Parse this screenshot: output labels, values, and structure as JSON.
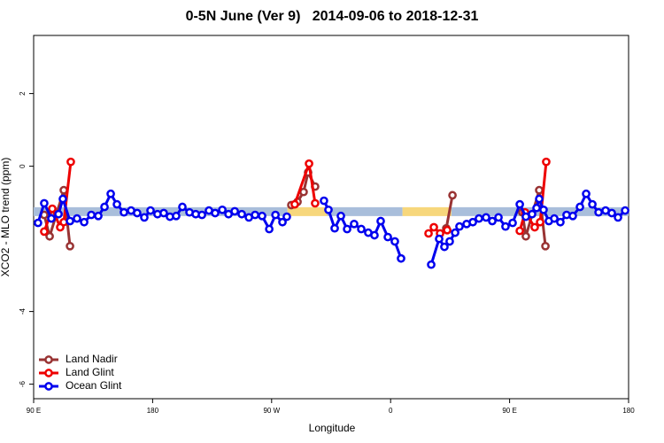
{
  "chart_data": {
    "type": "line",
    "title": "0-5N June (Ver 9)   2014-09-06 to 2018-12-31",
    "x_label": "Longitude",
    "y_label": "XCO2 - MLO trend (ppm)",
    "xlim": [
      90,
      540
    ],
    "ylim": [
      -6.4,
      3.6
    ],
    "xticks": [
      {
        "value": 90,
        "label": "90 E"
      },
      {
        "value": 180,
        "label": "180"
      },
      {
        "value": 270,
        "label": "90 W"
      },
      {
        "value": 360,
        "label": "0"
      },
      {
        "value": 450,
        "label": "90 E"
      },
      {
        "value": 540,
        "label": "180"
      }
    ],
    "yticks": [
      2,
      0,
      -4,
      -6
    ],
    "legend": "bottom-left",
    "band": {
      "value": -1.25,
      "segments": [
        {
          "from": 90,
          "to": 282,
          "color": "#a9bedb"
        },
        {
          "from": 282,
          "to": 312,
          "color": "#f7d77c"
        },
        {
          "from": 312,
          "to": 369,
          "color": "#a9bedb"
        },
        {
          "from": 369,
          "to": 406,
          "color": "#f7d77c"
        },
        {
          "from": 406,
          "to": 540,
          "color": "#a9bedb"
        }
      ]
    },
    "series": [
      {
        "name": "Land Nadir",
        "color": "#993333",
        "x": [
          98.0,
          102.1,
          112.8,
          117.5,
          200,
          284.9,
          289.6,
          294.2,
          297.6,
          302.9,
          350,
          402.1,
          406.8,
          430,
          459.6,
          462.3,
          472.4,
          477.1
        ],
        "values": [
          -1.34,
          -1.93,
          -0.66,
          -2.2,
          null,
          -1.07,
          -0.98,
          -0.71,
          -0.17,
          -0.56,
          null,
          -1.71,
          -0.8,
          null,
          -1.27,
          -1.93,
          -0.66,
          -2.2
        ]
      },
      {
        "name": "Land Glint",
        "color": "#ee0000",
        "x": [
          98.0,
          104.1,
          110.1,
          112.8,
          118.1,
          200,
          287.5,
          298.3,
          302.9,
          350,
          388.7,
          392.7,
          397.4,
          402.8,
          430,
          457.7,
          461.7,
          469.0,
          473.1,
          477.7
        ],
        "values": [
          -1.8,
          -1.17,
          -1.68,
          -1.54,
          0.12,
          null,
          -1.05,
          0.07,
          -1.02,
          null,
          -1.85,
          -1.68,
          -1.85,
          -1.76,
          null,
          -1.78,
          -1.27,
          -1.68,
          -1.54,
          0.12
        ]
      },
      {
        "name": "Ocean Glint",
        "color": "#0000ee",
        "x": [
          93.3,
          98.0,
          103.4,
          108.8,
          112.1,
          117.5,
          122.8,
          128.2,
          133.6,
          138.9,
          143.6,
          148.3,
          153.0,
          158.3,
          163.7,
          168.3,
          173.7,
          178.4,
          183.7,
          188.4,
          193.1,
          197.8,
          202.5,
          207.9,
          212.6,
          217.3,
          222.6,
          227.3,
          232.7,
          237.4,
          242.1,
          247.4,
          252.8,
          257.5,
          262.8,
          268.2,
          272.9,
          278.2,
          281.5,
          295,
          309.6,
          313.0,
          317.7,
          322.4,
          327.1,
          332.4,
          337.8,
          343.1,
          347.8,
          352.5,
          357.9,
          363.2,
          367.9,
          379,
          390.7,
          396.7,
          400.7,
          404.7,
          408.8,
          412.1,
          417.5,
          422.2,
          426.8,
          432.2,
          436.9,
          441.6,
          446.9,
          452.3,
          457.7,
          462.3,
          467.0,
          470.4,
          472.4,
          475.7,
          479.7,
          483.8,
          488.4,
          493.1,
          497.8,
          503.2,
          507.9,
          512.6,
          517.3,
          522.6,
          527.3,
          532.0,
          537.4
        ],
        "values": [
          -1.56,
          -1.02,
          -1.44,
          -1.32,
          -0.9,
          -1.51,
          -1.44,
          -1.54,
          -1.34,
          -1.37,
          -1.12,
          -0.76,
          -1.05,
          -1.27,
          -1.22,
          -1.29,
          -1.41,
          -1.22,
          -1.32,
          -1.29,
          -1.39,
          -1.37,
          -1.12,
          -1.27,
          -1.32,
          -1.34,
          -1.22,
          -1.29,
          -1.2,
          -1.32,
          -1.24,
          -1.32,
          -1.41,
          -1.34,
          -1.37,
          -1.73,
          -1.34,
          -1.54,
          -1.39,
          null,
          -0.95,
          -1.2,
          -1.71,
          -1.37,
          -1.73,
          -1.59,
          -1.73,
          -1.83,
          -1.9,
          -1.51,
          -1.95,
          -2.07,
          -2.54,
          null,
          -2.71,
          -2.0,
          -2.22,
          -2.07,
          -1.83,
          -1.66,
          -1.59,
          -1.54,
          -1.44,
          -1.41,
          -1.51,
          -1.41,
          -1.66,
          -1.56,
          -1.05,
          -1.39,
          -1.32,
          -1.15,
          -0.9,
          -1.2,
          -1.51,
          -1.44,
          -1.54,
          -1.34,
          -1.37,
          -1.12,
          -0.76,
          -1.05,
          -1.27,
          -1.22,
          -1.29,
          -1.41,
          -1.22
        ]
      }
    ]
  }
}
